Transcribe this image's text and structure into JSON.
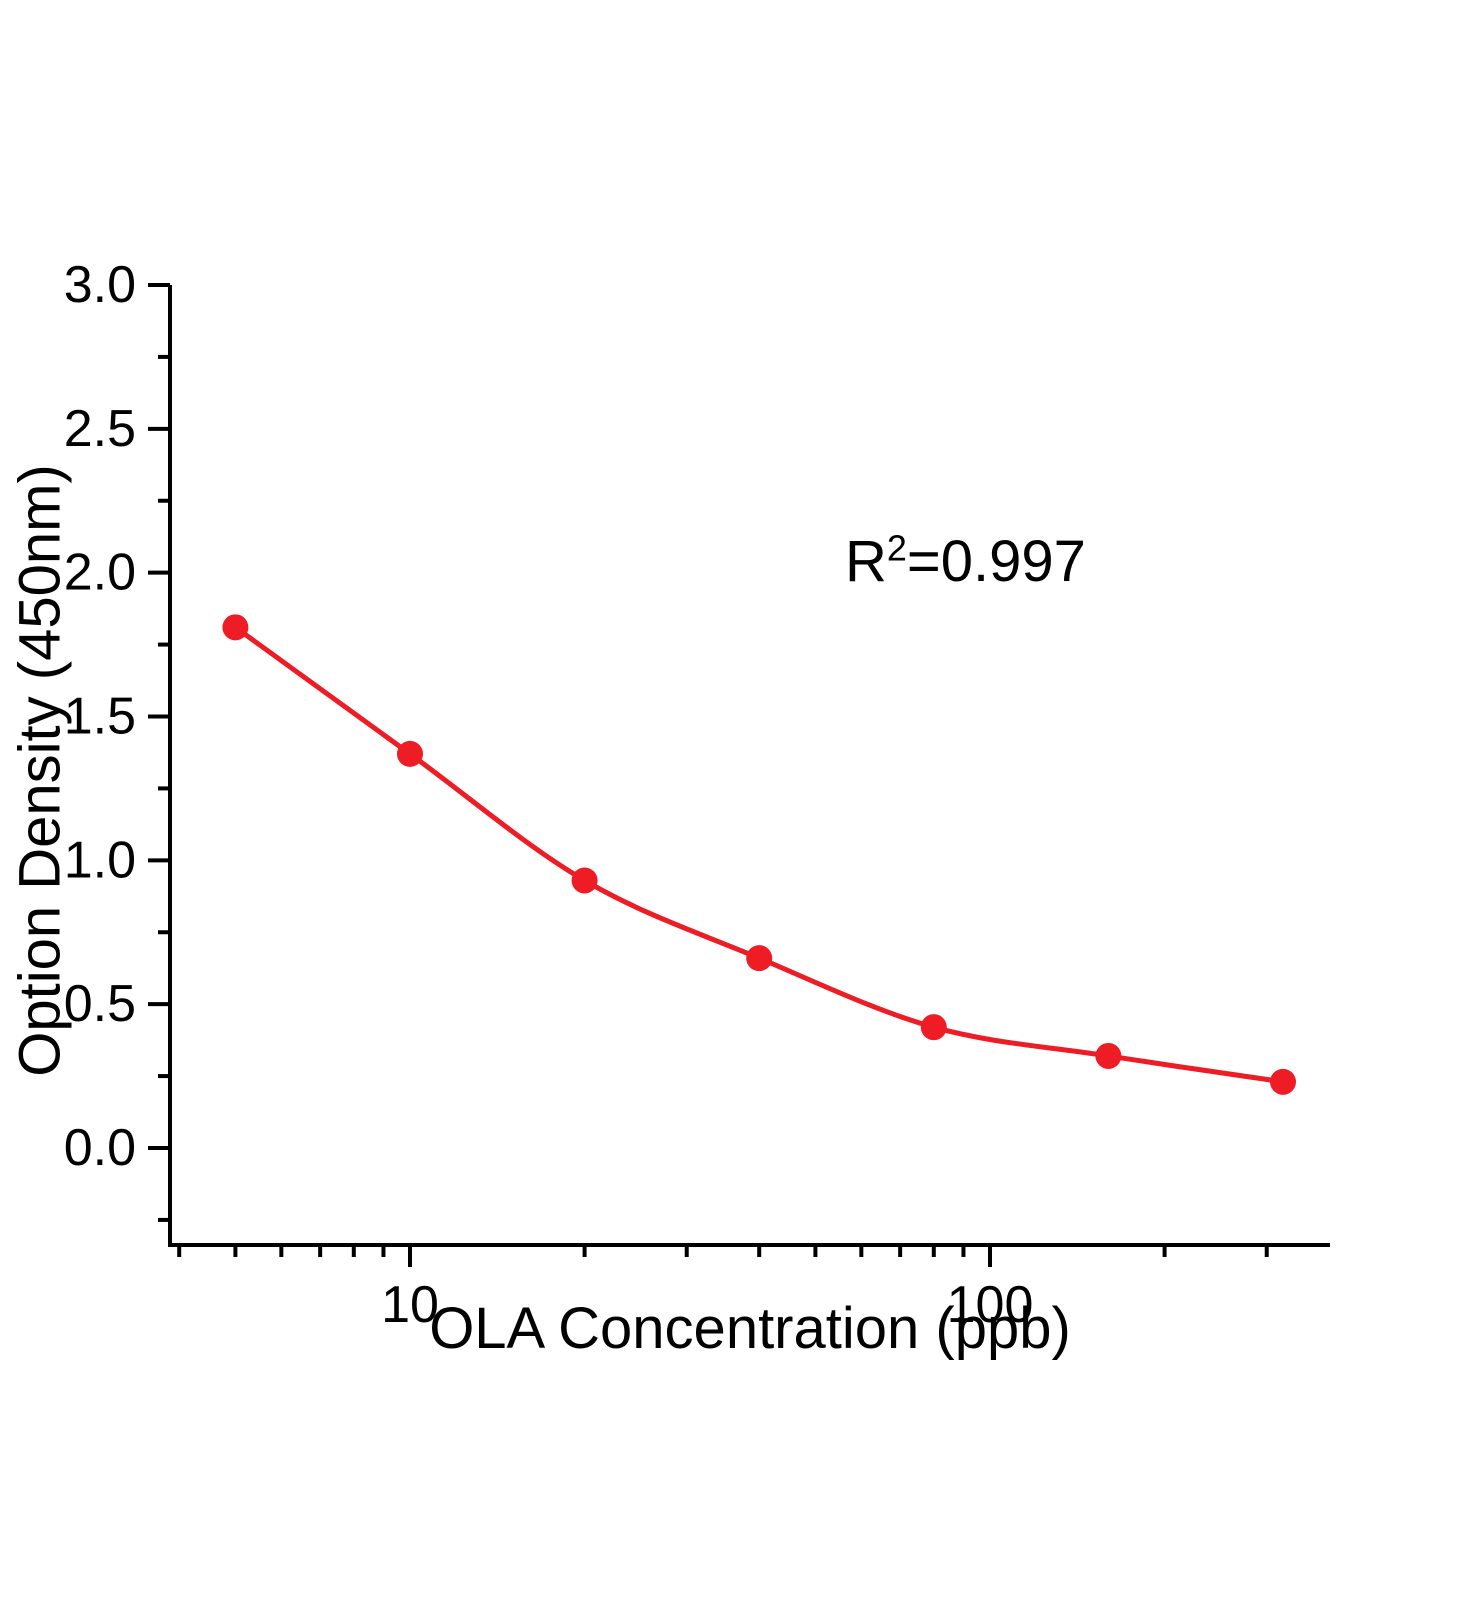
{
  "chart": {
    "ylabel": "Option Density (450nm)",
    "xlabel": "OLA Concentration (ppb)",
    "annotation": {
      "base": "R",
      "sup": "2",
      "rest": "=0.997"
    }
  },
  "chart_data": {
    "type": "scatter",
    "title": "",
    "xlabel": "OLA Concentration (ppb)",
    "ylabel": "Option Density (450nm)",
    "annotation": "R²=0.997",
    "x_scale": "log",
    "x": [
      5,
      10,
      20,
      40,
      80,
      160,
      320
    ],
    "y": [
      1.81,
      1.37,
      0.93,
      0.66,
      0.42,
      0.32,
      0.23
    ],
    "fit_line": true,
    "x_ticks_major": [
      10,
      100
    ],
    "x_tick_labels": [
      "10",
      "100"
    ],
    "x_ticks_minor": [
      4,
      5,
      6,
      7,
      8,
      9,
      20,
      30,
      40,
      50,
      60,
      70,
      80,
      90,
      200,
      300
    ],
    "y_ticks_major": [
      0.0,
      0.5,
      1.0,
      1.5,
      2.0,
      2.5,
      3.0
    ],
    "y_tick_labels": [
      "0.0",
      "0.5",
      "1.0",
      "1.5",
      "2.0",
      "2.5",
      "3.0"
    ],
    "y_ticks_minor": [
      -0.25,
      0.25,
      0.75,
      1.25,
      1.75,
      2.25,
      2.75
    ],
    "xlim": [
      3.86,
      385
    ],
    "ylim": [
      -0.34,
      3.0
    ],
    "grid": false,
    "legend": "none",
    "point_color": "#ee1c25",
    "line_color": "#ee1c25",
    "axis_color": "#000000"
  }
}
